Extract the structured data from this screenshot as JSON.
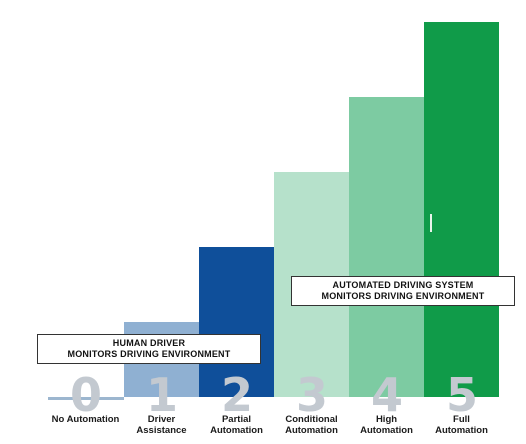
{
  "levels": [
    {
      "number": "0",
      "label": "No Automation",
      "value": 0,
      "color": "#9cb6cf"
    },
    {
      "number": "1",
      "label": "Driver\nAssistance",
      "value": 1,
      "color": "#8fb0d2"
    },
    {
      "number": "2",
      "label": "Partial\nAutomation",
      "value": 2,
      "color": "#0f4f9a"
    },
    {
      "number": "3",
      "label": "Conditional\nAutomation",
      "value": 3,
      "color": "#b6e1cb"
    },
    {
      "number": "4",
      "label": "High\nAutomation",
      "value": 4,
      "color": "#7dcba2"
    },
    {
      "number": "5",
      "label": "Full\nAutomation",
      "value": 5,
      "color": "#109b49"
    }
  ],
  "callouts": {
    "human": {
      "line1": "HUMAN DRIVER",
      "line2": "MONITORS DRIVING ENVIRONMENT"
    },
    "automated": {
      "line1": "AUTOMATED DRIVING SYSTEM",
      "line2": "MONITORS DRIVING ENVIRONMENT"
    }
  }
}
